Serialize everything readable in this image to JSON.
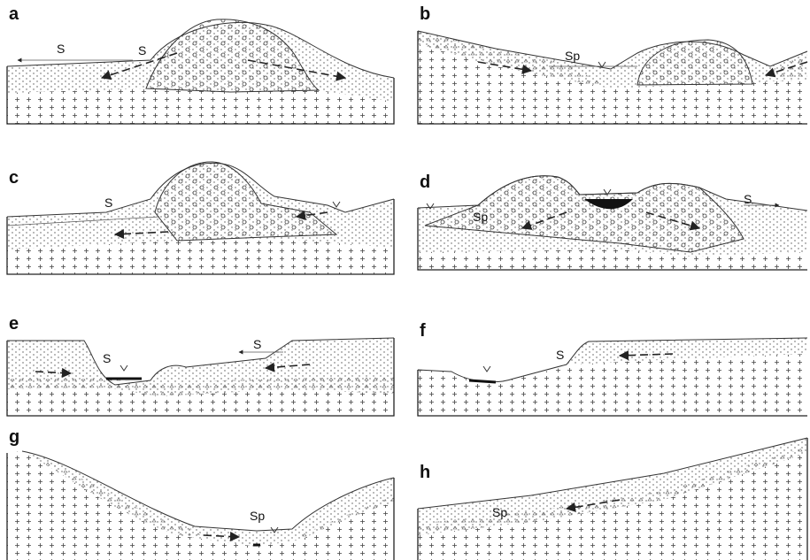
{
  "panels": [
    {
      "label": "a",
      "annotations": [
        "S",
        "S"
      ]
    },
    {
      "label": "b",
      "annotations": [
        "Sp"
      ]
    },
    {
      "label": "c",
      "annotations": [
        "S"
      ]
    },
    {
      "label": "d",
      "annotations": [
        "Sp",
        "S"
      ]
    },
    {
      "label": "e",
      "annotations": [
        "S",
        "S"
      ]
    },
    {
      "label": "f",
      "annotations": [
        "S"
      ]
    },
    {
      "label": "g",
      "annotations": [
        "Sp"
      ]
    },
    {
      "label": "h",
      "annotations": [
        "Sp"
      ]
    }
  ]
}
